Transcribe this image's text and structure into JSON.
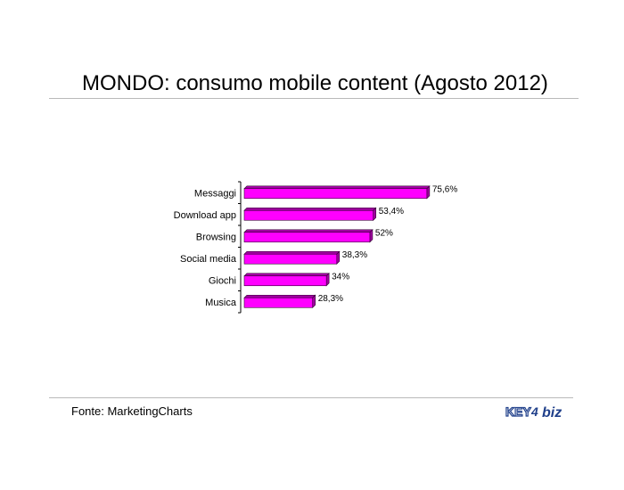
{
  "title": "MONDO: consumo mobile content (Agosto 2012)",
  "source": "Fonte: MarketingCharts",
  "logo": {
    "text_left": "KEY",
    "glyph": "4",
    "text_right": "biz"
  },
  "colors": {
    "bar": "#ff00ff",
    "bar_edge": "#330033",
    "bar_top": "#a000a0",
    "axis": "#000000",
    "rule": "#b9b9b9"
  },
  "chart_data": {
    "type": "bar",
    "orientation": "horizontal",
    "categories": [
      "Messaggi",
      "Download app",
      "Browsing",
      "Social media",
      "Giochi",
      "Musica"
    ],
    "values": [
      75.6,
      53.4,
      52,
      38.3,
      34,
      28.3
    ],
    "value_labels": [
      "75,6%",
      "53,4%",
      "52%",
      "38,3%",
      "34%",
      "28,3%"
    ],
    "xlim": [
      0,
      100
    ],
    "grid": false,
    "legend": false
  }
}
